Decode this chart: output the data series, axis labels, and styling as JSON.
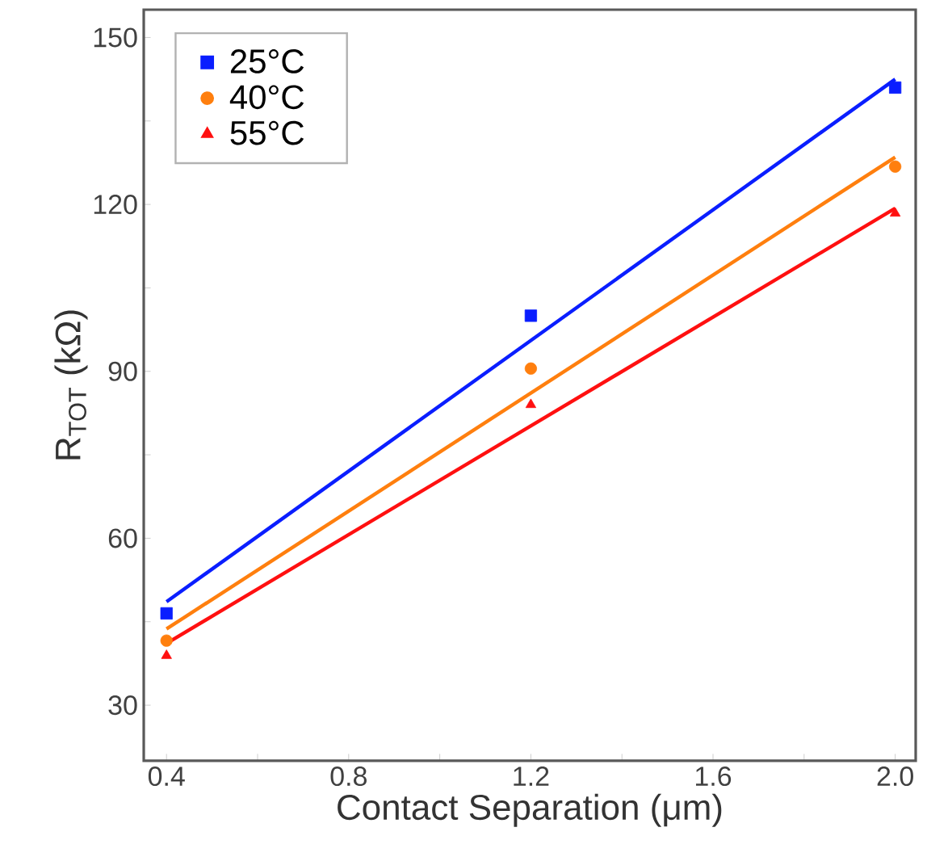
{
  "chart_data": {
    "type": "scatter",
    "xlabel": "Contact Separation (μm)",
    "ylabel": "R$_{TOT}$ (kΩ)",
    "xlim": [
      0.35,
      2.045
    ],
    "ylim": [
      20,
      155
    ],
    "xticks": [
      0.4,
      {
        "value": 0.6,
        "label": null
      },
      0.8,
      {
        "value": 1.0,
        "label": null
      },
      1.2,
      {
        "value": 1.4,
        "label": null
      },
      1.6,
      {
        "value": 1.8,
        "label": null
      },
      {
        "value": 2.0,
        "label": "2.0"
      }
    ],
    "yticks": [
      30,
      {
        "value": 45,
        "label": null
      },
      60,
      {
        "value": 75,
        "label": null
      },
      90,
      {
        "value": 105,
        "label": null
      },
      120,
      {
        "value": 135,
        "label": null
      },
      150
    ],
    "grid": false,
    "legend": "top left",
    "series": [
      {
        "name": "25°C",
        "color": "#0a1eff",
        "marker": "square",
        "x": [
          0.4,
          1.2,
          2.0
        ],
        "values": [
          46.5,
          100,
          141
        ]
      },
      {
        "name": "40°C",
        "color": "#ff7f0e",
        "marker": "circle",
        "x": [
          0.4,
          1.2,
          2.0
        ],
        "values": [
          41.6,
          90.5,
          126.8
        ]
      },
      {
        "name": "55°C",
        "color": "#ff1010",
        "marker": "triangle",
        "x": [
          0.4,
          1.2,
          2.0
        ],
        "values": [
          38.9,
          84,
          118.4
        ]
      },
      {
        "type": "line",
        "color": "#0a1eff",
        "x": [
          0.4,
          2.0
        ],
        "values": [
          48.6,
          142.5
        ]
      },
      {
        "type": "line",
        "color": "#ff7f0e",
        "x": [
          0.4,
          2.0
        ],
        "values": [
          43.7,
          128.5
        ]
      },
      {
        "type": "line",
        "color": "#ff1010",
        "x": [
          0.4,
          2.0
        ],
        "values": [
          41.1,
          119.3
        ]
      }
    ]
  }
}
